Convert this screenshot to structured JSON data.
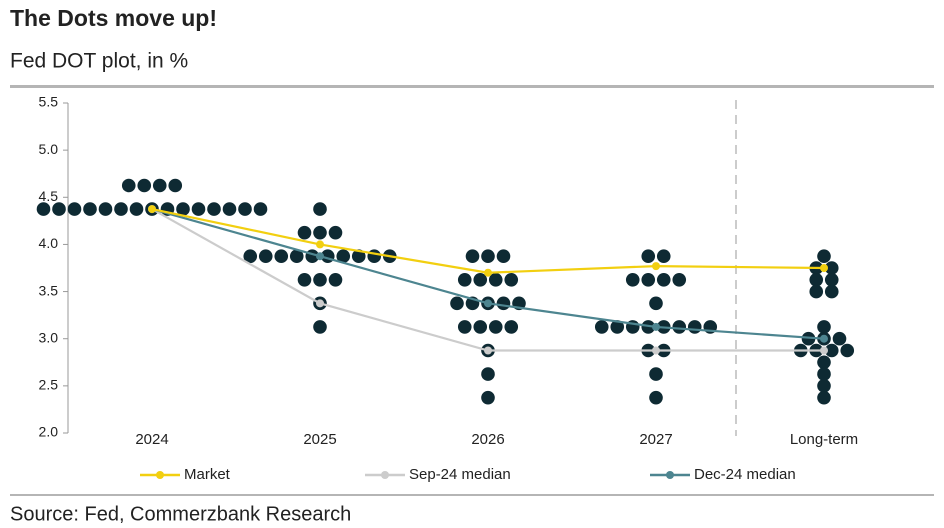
{
  "chart_data": {
    "type": "dotplot",
    "title": "The Dots move up!",
    "subtitle": "Fed DOT plot, in %",
    "source": "Source: Fed, Commerzbank Research",
    "categories": [
      "2024",
      "2025",
      "2026",
      "2027",
      "Long-term"
    ],
    "ylim": [
      2.0,
      5.5
    ],
    "yticks": [
      {
        "value": 2.0,
        "label": "2.0"
      },
      {
        "value": 2.5,
        "label": "2.5"
      },
      {
        "value": 3.0,
        "label": "3.0"
      },
      {
        "value": 3.5,
        "label": "3.5"
      },
      {
        "value": 4.0,
        "label": "4.0"
      },
      {
        "value": 4.5,
        "label": "4.5"
      },
      {
        "value": 5.0,
        "label": "5.0"
      },
      {
        "value": 5.5,
        "label": "5.5"
      }
    ],
    "dot_color": "#0e2a33",
    "dots": [
      [
        {
          "value": 4.625,
          "count": 4
        },
        {
          "value": 4.375,
          "count": 15
        }
      ],
      [
        {
          "value": 4.375,
          "count": 1
        },
        {
          "value": 4.125,
          "count": 3
        },
        {
          "value": 3.875,
          "count": 10
        },
        {
          "value": 3.625,
          "count": 3
        },
        {
          "value": 3.375,
          "count": 1
        },
        {
          "value": 3.125,
          "count": 1
        }
      ],
      [
        {
          "value": 3.875,
          "count": 3
        },
        {
          "value": 3.625,
          "count": 4
        },
        {
          "value": 3.375,
          "count": 5
        },
        {
          "value": 3.125,
          "count": 4
        },
        {
          "value": 2.875,
          "count": 1
        },
        {
          "value": 2.625,
          "count": 1
        },
        {
          "value": 2.375,
          "count": 1
        }
      ],
      [
        {
          "value": 3.875,
          "count": 2
        },
        {
          "value": 3.625,
          "count": 4
        },
        {
          "value": 3.375,
          "count": 1
        },
        {
          "value": 3.125,
          "count": 8
        },
        {
          "value": 2.875,
          "count": 2
        },
        {
          "value": 2.625,
          "count": 1
        },
        {
          "value": 2.375,
          "count": 1
        }
      ],
      [
        {
          "value": 3.875,
          "count": 1
        },
        {
          "value": 3.75,
          "count": 2
        },
        {
          "value": 3.625,
          "count": 2
        },
        {
          "value": 3.5,
          "count": 2
        },
        {
          "value": 3.125,
          "count": 1
        },
        {
          "value": 3.0,
          "count": 3
        },
        {
          "value": 2.875,
          "count": 4
        },
        {
          "value": 2.75,
          "count": 1
        },
        {
          "value": 2.625,
          "count": 1
        },
        {
          "value": 2.5,
          "count": 1
        },
        {
          "value": 2.375,
          "count": 1
        }
      ]
    ],
    "series": [
      {
        "name": "Market",
        "color": "#f2cf10",
        "values": [
          4.375,
          4.0,
          3.7,
          3.77,
          3.75
        ]
      },
      {
        "name": "Sep-24 median",
        "color": "#cccccc",
        "values": [
          4.375,
          3.375,
          2.875,
          2.875,
          2.875
        ]
      },
      {
        "name": "Dec-24 median",
        "color": "#4d8590",
        "values": [
          4.375,
          3.875,
          3.375,
          3.125,
          3.0
        ]
      }
    ]
  }
}
